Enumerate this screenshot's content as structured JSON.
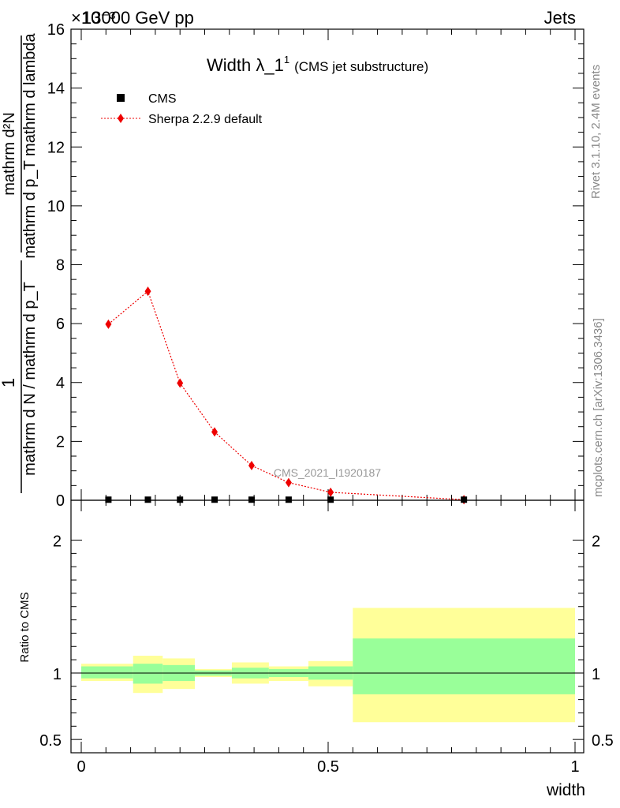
{
  "header": {
    "energy_label": "13000 GeV pp",
    "category_label": "Jets",
    "exponent_label": "×10⁻³"
  },
  "side_labels": {
    "rivet": "Rivet 3.1.10,  2.4M events",
    "mcplots": "mcplots.cern.ch [arXiv:1306.3436]"
  },
  "chart_data": [
    {
      "type": "scatter",
      "panel": "main",
      "title_main": "Width λ_1",
      "title_sup": "1",
      "title_sub": "(CMS jet substructure)",
      "ylabel_numerator": "mathrm d²N",
      "ylabel_denominator": "mathrm d p_T mathrm d lambda",
      "ylabel_left_num": "1",
      "ylabel_left_den": "mathrm d N / mathrm d p_T",
      "watermark": "CMS_2021_I1920187",
      "ylim": [
        0,
        16
      ],
      "y_scale_factor": 0.001,
      "yticks": [
        "0",
        "2",
        "4",
        "6",
        "8",
        "10",
        "12",
        "14",
        "16"
      ],
      "xlim": [
        0,
        1
      ],
      "legend_position": "top-left",
      "series": [
        {
          "name": "CMS",
          "color": "#000000",
          "marker": "square",
          "x": [
            0.055,
            0.135,
            0.2,
            0.27,
            0.345,
            0.42,
            0.505,
            0.775
          ],
          "y": [
            0.02,
            0.02,
            0.02,
            0.02,
            0.02,
            0.02,
            0.02,
            0.02
          ]
        },
        {
          "name": "Sherpa 2.2.9 default",
          "color": "#ee0000",
          "marker": "diamond",
          "line": "dotted",
          "x": [
            0.055,
            0.135,
            0.2,
            0.27,
            0.345,
            0.42,
            0.505,
            0.775
          ],
          "y": [
            5.98,
            7.1,
            3.98,
            2.32,
            1.18,
            0.6,
            0.27,
            0.02
          ]
        }
      ]
    },
    {
      "type": "area",
      "panel": "ratio",
      "ylabel": "Ratio to CMS",
      "ylim": [
        0.4,
        2.3
      ],
      "yticks": [
        {
          "value": 0.5,
          "label": "0.5"
        },
        {
          "value": 1,
          "label": "1"
        },
        {
          "value": 2,
          "label": "2"
        }
      ],
      "xlim": [
        0,
        1
      ],
      "xticks": [
        {
          "value": 0,
          "label": "0"
        },
        {
          "value": 0.5,
          "label": "0.5"
        },
        {
          "value": 1,
          "label": "1"
        }
      ],
      "xlabel": "width",
      "reference": 1,
      "bands": [
        {
          "x0": 0.0,
          "x1": 0.105,
          "outer": [
            0.94,
            1.07
          ],
          "inner": [
            0.96,
            1.05
          ]
        },
        {
          "x0": 0.105,
          "x1": 0.165,
          "outer": [
            0.85,
            1.13
          ],
          "inner": [
            0.92,
            1.07
          ]
        },
        {
          "x0": 0.165,
          "x1": 0.23,
          "outer": [
            0.88,
            1.11
          ],
          "inner": [
            0.94,
            1.06
          ]
        },
        {
          "x0": 0.23,
          "x1": 0.305,
          "outer": [
            0.97,
            1.03
          ],
          "inner": [
            0.98,
            1.02
          ]
        },
        {
          "x0": 0.305,
          "x1": 0.38,
          "outer": [
            0.92,
            1.08
          ],
          "inner": [
            0.96,
            1.04
          ]
        },
        {
          "x0": 0.38,
          "x1": 0.46,
          "outer": [
            0.94,
            1.05
          ],
          "inner": [
            0.97,
            1.03
          ]
        },
        {
          "x0": 0.46,
          "x1": 0.55,
          "outer": [
            0.9,
            1.09
          ],
          "inner": [
            0.95,
            1.05
          ]
        },
        {
          "x0": 0.55,
          "x1": 1.0,
          "outer": [
            0.63,
            1.49
          ],
          "inner": [
            0.84,
            1.26
          ]
        }
      ],
      "colors": {
        "outer": "#ffff99",
        "inner": "#99ff99"
      }
    }
  ]
}
